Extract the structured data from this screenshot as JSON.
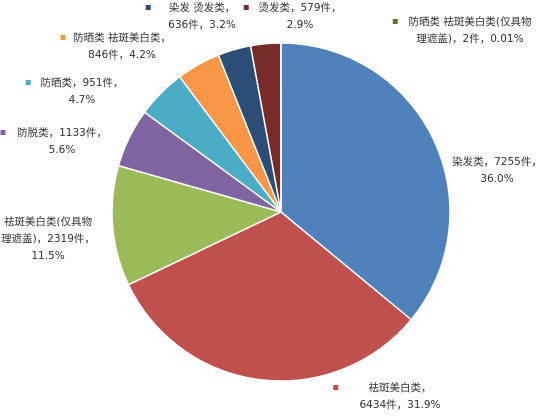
{
  "chart_data": {
    "type": "pie",
    "values": [
      7255,
      6434,
      2319,
      1133,
      951,
      846,
      636,
      579,
      2
    ],
    "value_labels": [
      [
        "染发类，7255件，",
        "36.0%"
      ],
      [
        "祛斑美白类，",
        "6434件，31.9%"
      ],
      [
        "祛斑美白类(仅具物",
        "理遮盖)，2319件，",
        "11.5%"
      ],
      [
        "防脱类，1133件，",
        "5.6%"
      ],
      [
        "防晒类，951件，",
        "4.7%"
      ],
      [
        "防晒类 祛斑美白类，",
        "846件，4.2%"
      ],
      [
        "染发 烫发类，",
        "636件，3.2%"
      ],
      [
        "烫发类，579件，",
        "2.9%"
      ],
      [
        "防晒类 祛斑美白类(仅具物",
        "理遮盖)，2件，0.01%"
      ]
    ],
    "colors": [
      "#4f81bd",
      "#c0504d",
      "#9bbb59",
      "#8064a2",
      "#4bacc6",
      "#f79646",
      "#2c4d75",
      "#772c2a",
      "#5f7530"
    ]
  }
}
